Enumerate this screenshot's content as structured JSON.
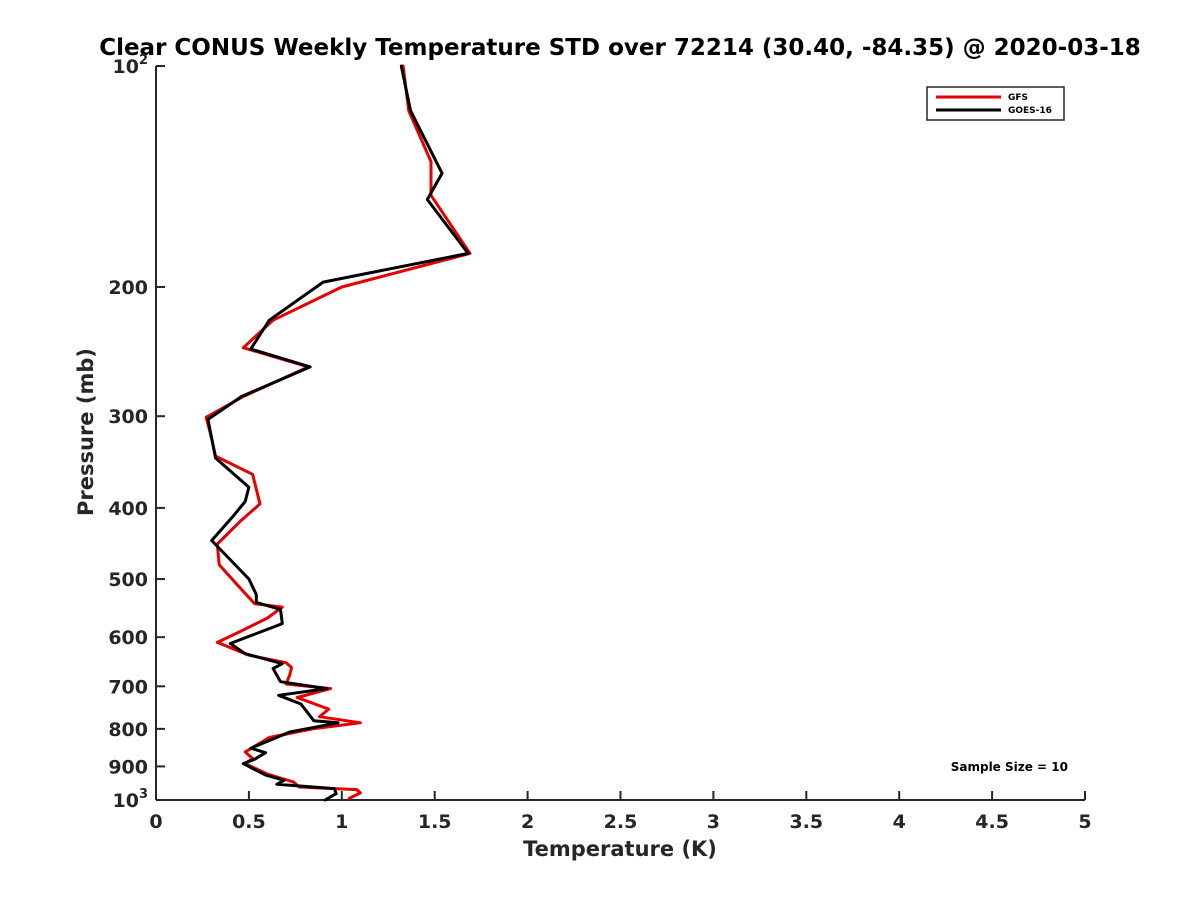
{
  "chart_data": {
    "type": "line",
    "title": "Clear CONUS Weekly Temperature STD over 72214 (30.40, -84.35) @ 2020-03-18",
    "xlabel": "Temperature (K)",
    "ylabel": "Pressure (mb)",
    "xlim": [
      0,
      5
    ],
    "ylim": [
      100,
      1000
    ],
    "y_scale": "log",
    "y_reversed": true,
    "grid": false,
    "legend_position": "top-right",
    "x_ticks": [
      {
        "value": 0,
        "label": "0"
      },
      {
        "value": 0.5,
        "label": "0.5"
      },
      {
        "value": 1,
        "label": "1"
      },
      {
        "value": 1.5,
        "label": "1.5"
      },
      {
        "value": 2,
        "label": "2"
      },
      {
        "value": 2.5,
        "label": "2.5"
      },
      {
        "value": 3,
        "label": "3"
      },
      {
        "value": 3.5,
        "label": "3.5"
      },
      {
        "value": 4,
        "label": "4"
      },
      {
        "value": 4.5,
        "label": "4.5"
      },
      {
        "value": 5,
        "label": "5"
      }
    ],
    "y_ticks": [
      {
        "value": 100,
        "label": "10",
        "exp": "2"
      },
      {
        "value": 200,
        "label": "200",
        "exp": ""
      },
      {
        "value": 300,
        "label": "300",
        "exp": ""
      },
      {
        "value": 400,
        "label": "400",
        "exp": ""
      },
      {
        "value": 500,
        "label": "500",
        "exp": ""
      },
      {
        "value": 600,
        "label": "600",
        "exp": ""
      },
      {
        "value": 700,
        "label": "700",
        "exp": ""
      },
      {
        "value": 800,
        "label": "800",
        "exp": ""
      },
      {
        "value": 900,
        "label": "900",
        "exp": ""
      },
      {
        "value": 1000,
        "label": "10",
        "exp": "3"
      }
    ],
    "annotation": "Sample Size = 10",
    "series": [
      {
        "name": "GFS",
        "color": "#e60000",
        "points": [
          [
            1.33,
            100
          ],
          [
            1.36,
            115
          ],
          [
            1.48,
            135
          ],
          [
            1.48,
            150
          ],
          [
            1.69,
            180
          ],
          [
            1.0,
            200
          ],
          [
            0.63,
            222
          ],
          [
            0.47,
            242
          ],
          [
            0.82,
            257
          ],
          [
            0.47,
            282
          ],
          [
            0.27,
            301
          ],
          [
            0.3,
            322
          ],
          [
            0.32,
            340
          ],
          [
            0.52,
            360
          ],
          [
            0.56,
            395
          ],
          [
            0.45,
            418
          ],
          [
            0.33,
            448
          ],
          [
            0.34,
            478
          ],
          [
            0.44,
            510
          ],
          [
            0.53,
            540
          ],
          [
            0.68,
            546
          ],
          [
            0.6,
            565
          ],
          [
            0.45,
            590
          ],
          [
            0.33,
            610
          ],
          [
            0.5,
            635
          ],
          [
            0.7,
            650
          ],
          [
            0.73,
            660
          ],
          [
            0.72,
            675
          ],
          [
            0.7,
            695
          ],
          [
            0.94,
            705
          ],
          [
            0.76,
            725
          ],
          [
            0.93,
            752
          ],
          [
            0.88,
            770
          ],
          [
            1.1,
            785
          ],
          [
            0.84,
            800
          ],
          [
            0.61,
            822
          ],
          [
            0.48,
            860
          ],
          [
            0.52,
            878
          ],
          [
            0.48,
            892
          ],
          [
            0.6,
            922
          ],
          [
            0.74,
            945
          ],
          [
            0.77,
            960
          ],
          [
            1.08,
            968
          ],
          [
            1.1,
            978
          ],
          [
            1.04,
            995
          ]
        ]
      },
      {
        "name": "GOES-16",
        "color": "#000000",
        "points": [
          [
            1.32,
            100
          ],
          [
            1.37,
            115
          ],
          [
            1.54,
            140
          ],
          [
            1.46,
            152
          ],
          [
            1.68,
            180
          ],
          [
            0.9,
            197
          ],
          [
            0.61,
            222
          ],
          [
            0.51,
            243
          ],
          [
            0.83,
            257
          ],
          [
            0.46,
            282
          ],
          [
            0.28,
            303
          ],
          [
            0.32,
            342
          ],
          [
            0.5,
            375
          ],
          [
            0.48,
            392
          ],
          [
            0.41,
            412
          ],
          [
            0.3,
            443
          ],
          [
            0.5,
            500
          ],
          [
            0.54,
            525
          ],
          [
            0.54,
            538
          ],
          [
            0.67,
            550
          ],
          [
            0.68,
            575
          ],
          [
            0.4,
            612
          ],
          [
            0.48,
            632
          ],
          [
            0.64,
            648
          ],
          [
            0.68,
            652
          ],
          [
            0.63,
            662
          ],
          [
            0.67,
            690
          ],
          [
            0.92,
            705
          ],
          [
            0.66,
            720
          ],
          [
            0.78,
            740
          ],
          [
            0.85,
            780
          ],
          [
            0.98,
            785
          ],
          [
            0.72,
            808
          ],
          [
            0.51,
            850
          ],
          [
            0.59,
            862
          ],
          [
            0.53,
            880
          ],
          [
            0.47,
            892
          ],
          [
            0.59,
            925
          ],
          [
            0.69,
            940
          ],
          [
            0.65,
            952
          ],
          [
            0.96,
            965
          ],
          [
            0.97,
            980
          ],
          [
            0.91,
            1000
          ]
        ]
      }
    ]
  }
}
